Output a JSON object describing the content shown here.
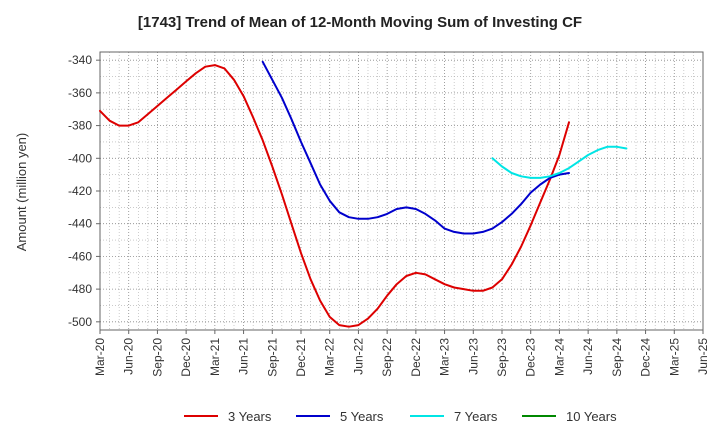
{
  "chart_data": {
    "type": "line",
    "title": "[1743]  Trend of Mean of 12-Month Moving Sum of Investing CF",
    "xlabel": "",
    "ylabel": "Amount (million yen)",
    "ylim": [
      -505,
      -335
    ],
    "yticks": [
      -340,
      -360,
      -380,
      -400,
      -420,
      -440,
      -460,
      -480,
      -500
    ],
    "xticks": [
      "Mar-20",
      "Jun-20",
      "Sep-20",
      "Dec-20",
      "Mar-21",
      "Jun-21",
      "Sep-21",
      "Dec-21",
      "Mar-22",
      "Jun-22",
      "Sep-22",
      "Dec-22",
      "Mar-23",
      "Jun-23",
      "Sep-23",
      "Dec-23",
      "Mar-24",
      "Jun-24",
      "Sep-24",
      "Dec-24",
      "Mar-25",
      "Jun-25"
    ],
    "grid": true,
    "legend_position": "bottom",
    "series": [
      {
        "name": "3 Years",
        "color": "#dd0000",
        "x_start": "Mar-20",
        "values": [
          -371,
          -377,
          -380,
          -380,
          -378,
          -373,
          -368,
          -363,
          -358,
          -353,
          -348,
          -344,
          -343,
          -345,
          -352,
          -362,
          -375,
          -389,
          -405,
          -422,
          -440,
          -458,
          -474,
          -487,
          -497,
          -502,
          -503,
          -502,
          -498,
          -492,
          -484,
          -477,
          -472,
          -470,
          -471,
          -474,
          -477,
          -479,
          -480,
          -481,
          -481,
          -479,
          -474,
          -465,
          -454,
          -441,
          -427,
          -413,
          -398,
          -378
        ]
      },
      {
        "name": "5 Years",
        "color": "#0000cc",
        "x_start": "Aug-21",
        "values": [
          -341,
          -352,
          -363,
          -376,
          -390,
          -403,
          -416,
          -426,
          -433,
          -436,
          -437,
          -437,
          -436,
          -434,
          -431,
          -430,
          -431,
          -434,
          -438,
          -443,
          -445,
          -446,
          -446,
          -445,
          -443,
          -439,
          -434,
          -428,
          -421,
          -416,
          -412,
          -410,
          -409
        ]
      },
      {
        "name": "7 Years",
        "color": "#00e5e5",
        "x_start": "Aug-23",
        "values": [
          -400,
          -405,
          -409,
          -411,
          -412,
          -412,
          -411,
          -409,
          -406,
          -402,
          -398,
          -395,
          -393,
          -393,
          -394
        ]
      },
      {
        "name": "10 Years",
        "color": "#008800",
        "x_start": "Mar-25",
        "values": []
      }
    ]
  }
}
